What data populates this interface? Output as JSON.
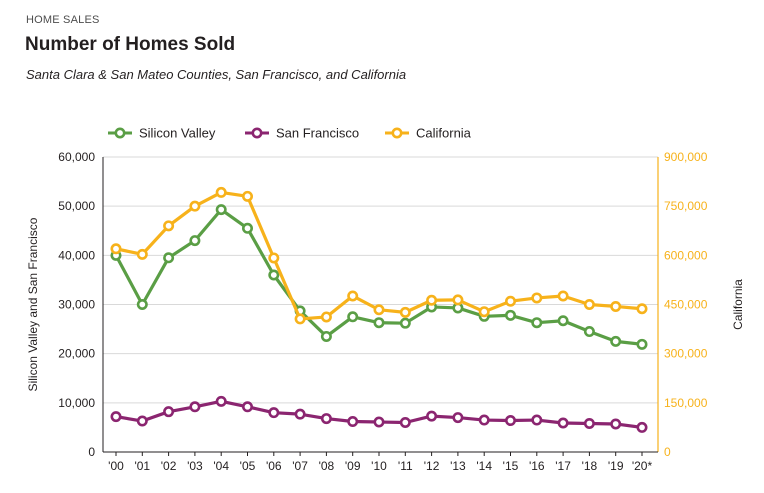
{
  "header": {
    "kicker": "HOME SALES",
    "title": "Number of Homes Sold",
    "subtitle": "Santa Clara & San Mateo Counties, San Francisco, and California"
  },
  "colors": {
    "silicon_valley": "#5a9e45",
    "san_francisco": "#8b2570",
    "california": "#f7b21b",
    "axis": "#231f20",
    "grid": "#d9d9d9"
  },
  "chart_data": {
    "type": "line",
    "categories": [
      "'00",
      "'01",
      "'02",
      "'03",
      "'04",
      "'05",
      "'06",
      "'07",
      "'08",
      "'09",
      "'10",
      "'11",
      "'12",
      "'13",
      "'14",
      "'15",
      "'16",
      "'17",
      "'18",
      "'19",
      "'20*"
    ],
    "left_axis": {
      "label": "Silicon Valley and San Francisco",
      "ylim": [
        0,
        60000
      ],
      "ticks": [
        0,
        10000,
        20000,
        30000,
        40000,
        50000,
        60000
      ],
      "tick_labels": [
        "0",
        "10,000",
        "20,000",
        "30,000",
        "40,000",
        "50,000",
        "60,000"
      ]
    },
    "right_axis": {
      "label": "California",
      "ylim": [
        0,
        900000
      ],
      "ticks": [
        0,
        150000,
        300000,
        450000,
        600000,
        750000,
        900000
      ],
      "tick_labels": [
        "0",
        "150,000",
        "300,000",
        "450,000",
        "600,000",
        "750,000",
        "900,000"
      ]
    },
    "grid": true,
    "legend": "top-left",
    "series": [
      {
        "name": "Silicon Valley",
        "axis": "left",
        "color": "#5a9e45",
        "values": [
          40000,
          30000,
          39500,
          43000,
          49300,
          45500,
          36000,
          28700,
          23500,
          27500,
          26300,
          26200,
          29500,
          29300,
          27600,
          27800,
          26300,
          26700,
          24500,
          22500,
          21900
        ]
      },
      {
        "name": "San Francisco",
        "axis": "left",
        "color": "#8b2570",
        "values": [
          7200,
          6300,
          8200,
          9200,
          10300,
          9200,
          8000,
          7700,
          6800,
          6200,
          6100,
          6000,
          7300,
          7000,
          6500,
          6400,
          6500,
          5900,
          5800,
          5700,
          5000
        ]
      },
      {
        "name": "California",
        "axis": "right",
        "color": "#f7b21b",
        "values": [
          620000,
          603000,
          690000,
          750000,
          792000,
          780000,
          592000,
          406000,
          412000,
          476000,
          434000,
          426000,
          463000,
          464000,
          428000,
          460000,
          470000,
          476000,
          450000,
          444000,
          437000
        ]
      }
    ]
  }
}
